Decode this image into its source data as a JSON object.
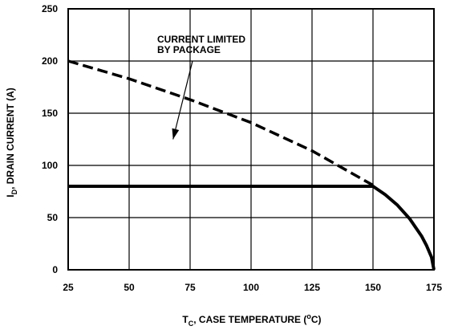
{
  "chart_data": {
    "type": "line",
    "title": "",
    "xlabel": {
      "main": "T",
      "sub": "C",
      "mid": ", CASE TEMPERATURE (",
      "sup": "o",
      "end": "C)"
    },
    "ylabel": {
      "main": "I",
      "sub": "D",
      "rest": ", DRAIN CURRENT (A)"
    },
    "xlim": [
      25,
      175
    ],
    "ylim": [
      0,
      250
    ],
    "x_ticks": [
      25,
      50,
      75,
      100,
      125,
      150,
      175
    ],
    "y_ticks": [
      0,
      50,
      100,
      150,
      200,
      250
    ],
    "grid": true,
    "series": [
      {
        "style": "dashed",
        "x": [
          25,
          50,
          75,
          100,
          125,
          150
        ],
        "y": [
          200,
          183,
          163,
          141,
          114,
          81
        ]
      },
      {
        "style": "solid",
        "x": [
          25,
          150,
          155,
          160,
          165,
          170,
          172,
          174,
          175
        ],
        "y": [
          80,
          80,
          72,
          62,
          49,
          32,
          23,
          12,
          0
        ]
      }
    ],
    "annotation": {
      "lines": [
        "CURRENT LIMITED",
        "BY PACKAGE"
      ],
      "arrow_to": [
        68,
        125
      ]
    }
  }
}
